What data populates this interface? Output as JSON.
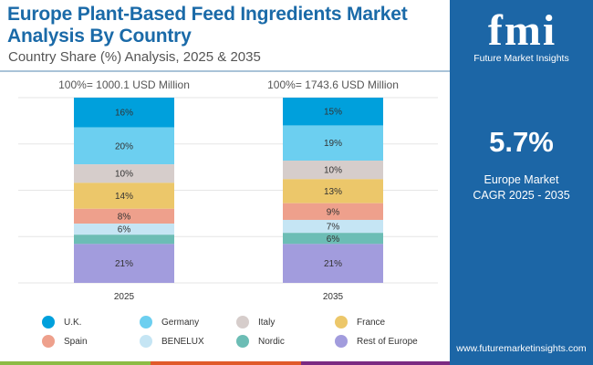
{
  "header": {
    "title": "Europe Plant-Based Feed Ingredients Market Analysis By Country",
    "subtitle": "Country Share (%) Analysis, 2025 & 2035"
  },
  "chart_data": {
    "type": "bar",
    "stacked": true,
    "grid": true,
    "legend_position": "bottom",
    "categories": [
      "2025",
      "2035"
    ],
    "totals": [
      "100%= 1000.1 USD Million",
      "100%= 1743.6 USD Million"
    ],
    "series": [
      {
        "name": "U.K.",
        "color": "#00a0dc",
        "values": [
          16,
          15
        ],
        "labels": [
          "16%",
          "15%"
        ]
      },
      {
        "name": "Germany",
        "color": "#6ccff0",
        "values": [
          20,
          19
        ],
        "labels": [
          "20%",
          "19%"
        ]
      },
      {
        "name": "Italy",
        "color": "#d6cdcb",
        "values": [
          10,
          10
        ],
        "labels": [
          "10%",
          "10%"
        ]
      },
      {
        "name": "France",
        "color": "#ecc76a",
        "values": [
          14,
          13
        ],
        "labels": [
          "14%",
          "13%"
        ]
      },
      {
        "name": "Spain",
        "color": "#eea08c",
        "values": [
          8,
          9
        ],
        "labels": [
          "8%",
          "9%"
        ]
      },
      {
        "name": "BENELUX",
        "color": "#c5e5f4",
        "values": [
          6,
          7
        ],
        "labels": [
          "6%",
          "7%"
        ]
      },
      {
        "name": "Nordic",
        "color": "#6cbdb5",
        "values": [
          5,
          6
        ],
        "labels": [
          "",
          "6%"
        ]
      },
      {
        "name": "Rest of Europe",
        "color": "#a29cdd",
        "values": [
          21,
          21
        ],
        "labels": [
          "21%",
          "21%"
        ]
      }
    ]
  },
  "panel": {
    "logo": "fmi",
    "brand": "Future Market Insights",
    "cagr": "5.7%",
    "cagr_label1": "Europe Market",
    "cagr_label2": "CAGR 2025 - 2035",
    "url": "www.futuremarketinsights.com",
    "color": "#1c66a6"
  },
  "footer_stripes": [
    "#8dbb45",
    "#e05a2a",
    "#7b2a82"
  ]
}
